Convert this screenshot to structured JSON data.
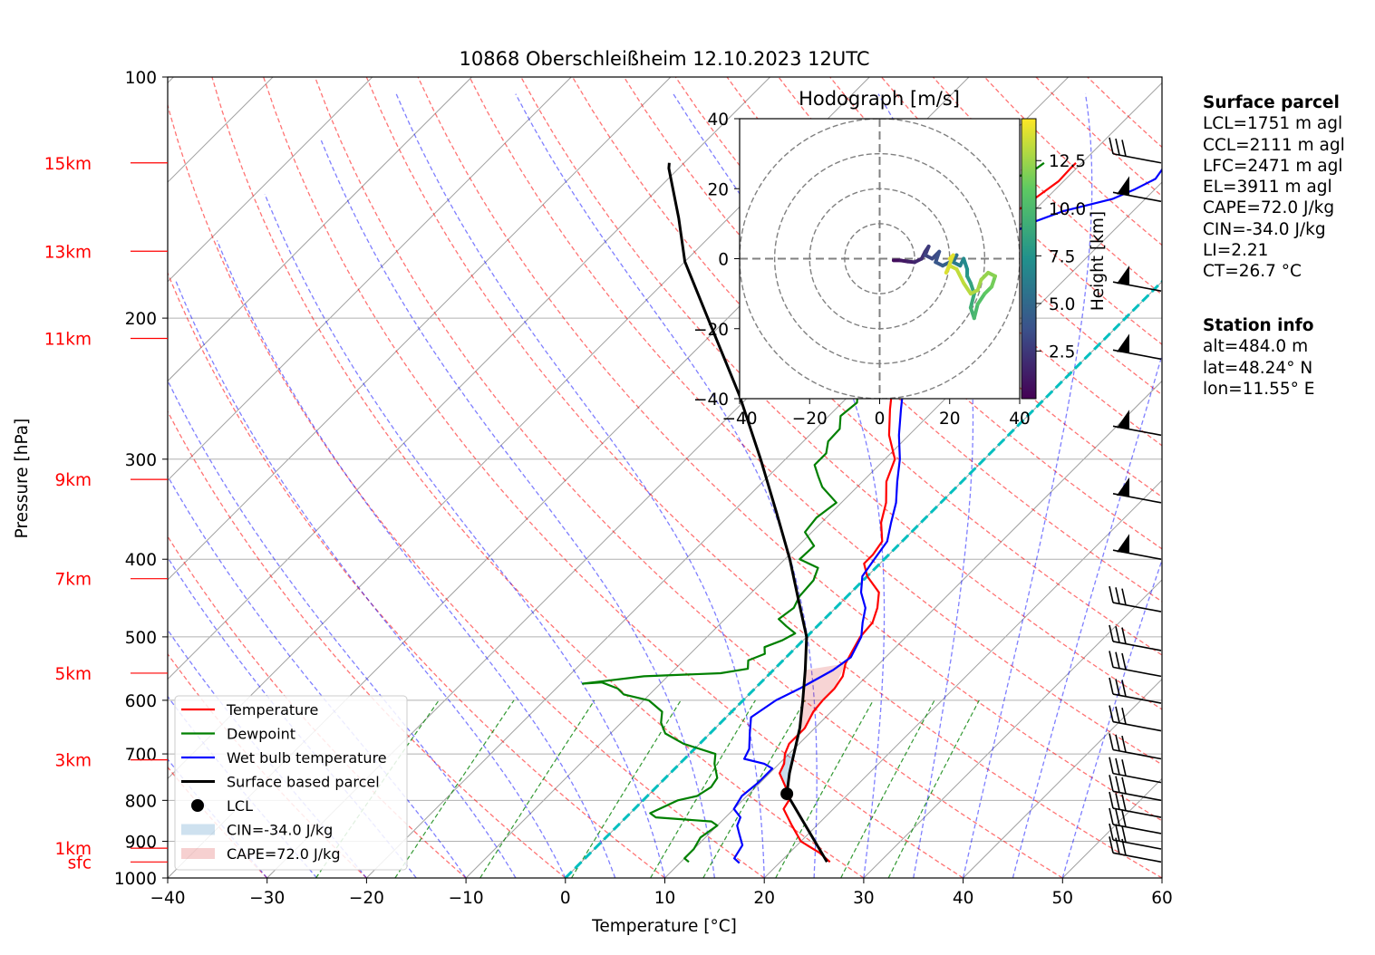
{
  "chart_data": {
    "type": "line",
    "title": "10868 Oberschleißheim 12.10.2023 12UTC",
    "xlabel": "Temperature [°C]",
    "ylabel": "Pressure [hPa]",
    "x_ticks": [
      "−40",
      "−30",
      "−20",
      "−10",
      "0",
      "10",
      "20",
      "30",
      "40",
      "50",
      "60"
    ],
    "y_ticks": [
      "100",
      "200",
      "300",
      "400",
      "500",
      "600",
      "700",
      "800",
      "900",
      "1000"
    ],
    "xlim": [
      -40,
      60
    ],
    "ylim_hpa": [
      1000,
      100
    ],
    "y_scale": "log",
    "skew": "skew-T",
    "grid": true,
    "height_labels": [
      {
        "label": "15km",
        "p": 128
      },
      {
        "label": "13km",
        "p": 165
      },
      {
        "label": "11km",
        "p": 212
      },
      {
        "label": "9km",
        "p": 318
      },
      {
        "label": "7km",
        "p": 423
      },
      {
        "label": "5km",
        "p": 555
      },
      {
        "label": "3km",
        "p": 712
      },
      {
        "label": "1km",
        "p": 918
      },
      {
        "label": "sfc",
        "p": 955
      }
    ],
    "series": [
      {
        "name": "Temperature",
        "color": "#ff0000",
        "points": [
          [
            25,
            955
          ],
          [
            23,
            930
          ],
          [
            20,
            900
          ],
          [
            17.5,
            860
          ],
          [
            15,
            820
          ],
          [
            14.5,
            790
          ],
          [
            13,
            770
          ],
          [
            11,
            740
          ],
          [
            10.5,
            720
          ],
          [
            9.6,
            700
          ],
          [
            9,
            680
          ],
          [
            9,
            650
          ],
          [
            8.2,
            620
          ],
          [
            8,
            600
          ],
          [
            8,
            580
          ],
          [
            7.6,
            560
          ],
          [
            6.6,
            540
          ],
          [
            6,
            520
          ],
          [
            5.4,
            500
          ],
          [
            5.2,
            480
          ],
          [
            4.2,
            460
          ],
          [
            2.8,
            440
          ],
          [
            0,
            420
          ],
          [
            -1.6,
            405
          ],
          [
            -1.6,
            395
          ],
          [
            -2,
            380
          ],
          [
            -4,
            360
          ],
          [
            -5.5,
            340
          ],
          [
            -7.6,
            320
          ],
          [
            -9,
            300
          ],
          [
            -12,
            280
          ],
          [
            -14.5,
            260
          ],
          [
            -17,
            240
          ],
          [
            -18.5,
            225
          ],
          [
            -20,
            210
          ],
          [
            -21.6,
            200
          ],
          [
            -24,
            185
          ],
          [
            -23.6,
            175
          ],
          [
            -23,
            160
          ],
          [
            -22.5,
            150
          ],
          [
            -21.4,
            145
          ],
          [
            -21,
            140
          ],
          [
            -20.5,
            135
          ],
          [
            -20.6,
            130
          ],
          [
            -20.6,
            128
          ]
        ]
      },
      {
        "name": "Dewpoint",
        "color": "#008000",
        "points": [
          [
            10.8,
            955
          ],
          [
            10,
            945
          ],
          [
            10,
            920
          ],
          [
            9.5,
            890
          ],
          [
            10,
            860
          ],
          [
            9,
            850
          ],
          [
            3,
            840
          ],
          [
            2,
            830
          ],
          [
            3.5,
            800
          ],
          [
            5,
            790
          ],
          [
            5.5,
            770
          ],
          [
            5.2,
            750
          ],
          [
            3.5,
            720
          ],
          [
            2.6,
            700
          ],
          [
            -1.6,
            680
          ],
          [
            -4.5,
            660
          ],
          [
            -6,
            640
          ],
          [
            -7,
            620
          ],
          [
            -9.5,
            600
          ],
          [
            -12.6,
            590
          ],
          [
            -13.8,
            580
          ],
          [
            -16,
            570
          ],
          [
            -17.8,
            572
          ],
          [
            -16,
            568
          ],
          [
            -12.4,
            560
          ],
          [
            -5,
            555
          ],
          [
            -2.7,
            548
          ],
          [
            -3.5,
            535
          ],
          [
            -2.5,
            525
          ],
          [
            -3.2,
            515
          ],
          [
            -2.1,
            505
          ],
          [
            -1.5,
            495
          ],
          [
            -3.1,
            485
          ],
          [
            -4.6,
            475
          ],
          [
            -4.2,
            460
          ],
          [
            -4.8,
            445
          ],
          [
            -5,
            425
          ],
          [
            -5.8,
            410
          ],
          [
            -8.5,
            400
          ],
          [
            -8.4,
            385
          ],
          [
            -10.7,
            370
          ],
          [
            -11,
            355
          ],
          [
            -10.5,
            340
          ],
          [
            -13.5,
            325
          ],
          [
            -15,
            315
          ],
          [
            -16.5,
            305
          ],
          [
            -16.5,
            295
          ],
          [
            -17.5,
            285
          ],
          [
            -17.6,
            275
          ],
          [
            -18.8,
            265
          ],
          [
            -18.5,
            255
          ],
          [
            -19.8,
            245
          ],
          [
            -19.4,
            235
          ],
          [
            -19.5,
            225
          ],
          [
            -20.1,
            215
          ],
          [
            -21.5,
            205
          ],
          [
            -21.6,
            195
          ],
          [
            -22.4,
            185
          ],
          [
            -23.5,
            175
          ],
          [
            -24,
            165
          ],
          [
            -25,
            160
          ],
          [
            -28,
            152
          ],
          [
            -28.5,
            148
          ],
          [
            -27.5,
            145
          ],
          [
            -26.6,
            140
          ],
          [
            -25.6,
            135
          ],
          [
            -24,
            130
          ],
          [
            -23.8,
            128
          ]
        ]
      },
      {
        "name": "Wet bulb temperature",
        "color": "#0000ff",
        "points": [
          [
            16,
            958
          ],
          [
            15,
            945
          ],
          [
            14.5,
            910
          ],
          [
            13,
            880
          ],
          [
            12,
            860
          ],
          [
            11.5,
            840
          ],
          [
            10,
            820
          ],
          [
            9.5,
            790
          ],
          [
            9.8,
            760
          ],
          [
            9.8,
            730
          ],
          [
            8.5,
            720
          ],
          [
            6,
            710
          ],
          [
            5.5,
            690
          ],
          [
            4,
            660
          ],
          [
            2.5,
            630
          ],
          [
            3.3,
            600
          ],
          [
            4.5,
            580
          ],
          [
            6,
            550
          ],
          [
            6.5,
            530
          ],
          [
            5.5,
            500
          ],
          [
            4.2,
            480
          ],
          [
            3,
            460
          ],
          [
            1,
            440
          ],
          [
            -0.5,
            420
          ],
          [
            -1,
            400
          ],
          [
            -1.5,
            380
          ],
          [
            -3,
            360
          ],
          [
            -4.5,
            340
          ],
          [
            -6.5,
            320
          ],
          [
            -8.5,
            300
          ],
          [
            -11,
            280
          ],
          [
            -13.4,
            260
          ],
          [
            -15.9,
            240
          ],
          [
            -17.5,
            225
          ],
          [
            -19.2,
            210
          ],
          [
            -20.8,
            200
          ],
          [
            -22.6,
            185
          ],
          [
            -22,
            175
          ],
          [
            -21.7,
            165
          ],
          [
            -20.2,
            158
          ],
          [
            -19,
            152
          ],
          [
            -17,
            147
          ],
          [
            -13.3,
            142
          ],
          [
            -12,
            138
          ],
          [
            -11,
            134
          ],
          [
            -11.3,
            130
          ],
          [
            -10.6,
            128
          ]
        ]
      },
      {
        "name": "Surface based parcel",
        "color": "#000000",
        "points": [
          [
            24.7,
            955
          ],
          [
            13.8,
            785
          ],
          [
            12,
            740
          ],
          [
            10.5,
            700
          ],
          [
            8.5,
            650
          ],
          [
            6,
            600
          ],
          [
            3.2,
            550
          ],
          [
            0,
            500
          ],
          [
            -4.5,
            450
          ],
          [
            -9.5,
            400
          ],
          [
            -15.5,
            350
          ],
          [
            -22.5,
            300
          ],
          [
            -31,
            250
          ],
          [
            -42,
            200
          ],
          [
            -50,
            170
          ],
          [
            -55,
            150
          ],
          [
            -61,
            130
          ],
          [
            -61.5,
            128
          ]
        ]
      }
    ],
    "lcl_point": {
      "t": 13.8,
      "p": 785
    },
    "legend_labels": [
      "Temperature",
      "Dewpoint",
      "Wet bulb temperature",
      "Surface based parcel",
      "LCL",
      "CIN=-34.0 J/kg",
      "CAPE=72.0 J/kg"
    ],
    "legend_position": "lower-left",
    "wind_barbs_hpa": [
      128,
      143,
      185,
      225,
      280,
      340,
      400,
      465,
      520,
      560,
      605,
      655,
      710,
      760,
      800,
      840,
      880,
      920,
      955
    ],
    "hodograph": {
      "title": "Hodograph [m/s]",
      "x_ticks": [
        "−40",
        "−20",
        "0",
        "20",
        "40"
      ],
      "y_ticks": [
        "40",
        "20",
        "0",
        "−20",
        "−40"
      ],
      "xlim": [
        -40,
        40
      ],
      "ylim": [
        -40,
        40
      ],
      "rings": [
        10,
        20,
        30,
        40
      ],
      "colorbar_label": "Height [km]",
      "colorbar_ticks": [
        "2.5",
        "5.0",
        "7.5",
        "10.0",
        "12.5"
      ],
      "colormap": "viridis",
      "points": [
        [
          4,
          -0.5,
          0.3
        ],
        [
          6,
          -0.5,
          0.6
        ],
        [
          8,
          -0.8,
          1
        ],
        [
          10,
          -1,
          1.3
        ],
        [
          12,
          0,
          1.7
        ],
        [
          13,
          2,
          2
        ],
        [
          14,
          3.5,
          2.3
        ],
        [
          13,
          1,
          2.6
        ],
        [
          15,
          0,
          3
        ],
        [
          17,
          2,
          3.3
        ],
        [
          16,
          -1,
          3.6
        ],
        [
          18,
          -2,
          4
        ],
        [
          20,
          -1,
          4.5
        ],
        [
          22,
          1,
          5
        ],
        [
          21,
          -1,
          5.5
        ],
        [
          23,
          -2,
          6
        ],
        [
          24,
          0,
          6.5
        ],
        [
          25,
          -3,
          7
        ],
        [
          25,
          -5,
          7.5
        ],
        [
          26,
          -7,
          8
        ],
        [
          27,
          -10,
          8.5
        ],
        [
          26,
          -14,
          9
        ],
        [
          27,
          -17,
          9.5
        ],
        [
          28,
          -13,
          10
        ],
        [
          30,
          -10,
          10.5
        ],
        [
          32,
          -8,
          11
        ],
        [
          33,
          -5,
          11.5
        ],
        [
          31,
          -4,
          12
        ],
        [
          29,
          -6,
          12.3
        ],
        [
          28,
          -9,
          12.6
        ],
        [
          26,
          -10,
          12.9
        ],
        [
          24,
          -7,
          13.1
        ],
        [
          22,
          -3,
          13.3
        ],
        [
          20,
          -2,
          13.5
        ],
        [
          19,
          -4,
          13.7
        ],
        [
          21,
          1,
          13.9
        ],
        [
          20,
          0,
          14.1
        ]
      ]
    }
  },
  "surface_parcel": {
    "title": "Surface parcel",
    "lines": [
      "LCL=1751 m agl",
      "CCL=2111 m agl",
      "LFC=2471 m agl",
      "EL=3911 m agl",
      "CAPE=72.0 J/kg",
      "CIN=-34.0 J/kg",
      "LI=2.21",
      "CT=26.7 °C"
    ]
  },
  "station_info": {
    "title": "Station info",
    "lines": [
      "alt=484.0 m",
      "lat=48.24° N",
      "lon=11.55° E"
    ]
  },
  "colors": {
    "dry_adiabat": "#ff0000",
    "moist_adiabat": "#0000ff",
    "mixing_ratio": "#008000",
    "isotherm": "#808080",
    "freezing_line": "#00bfbf",
    "height_label": "#ff0000"
  }
}
